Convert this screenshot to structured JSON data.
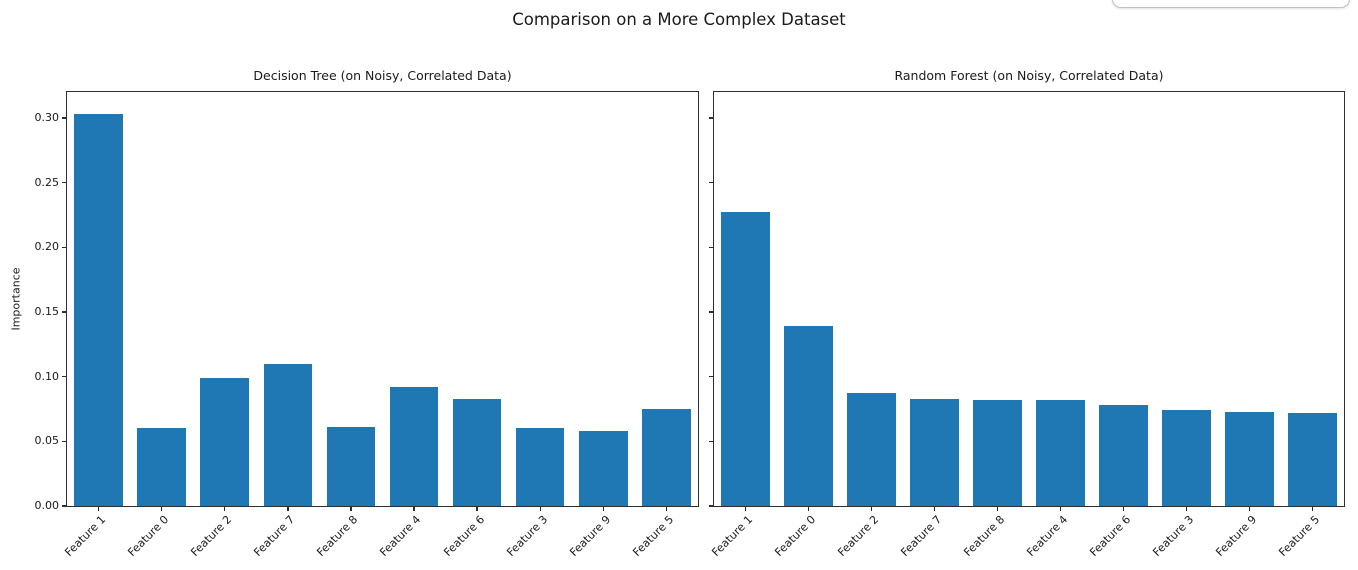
{
  "suptitle": "Comparison on a More Complex Dataset",
  "popup": {
    "visible": true
  },
  "colors": {
    "bar": "#1f77b4",
    "spine": "#2e2e2e",
    "text": "#1a1a1a",
    "popup_border": "#c2c2c2",
    "background": "#ffffff"
  },
  "chart_data": [
    {
      "type": "bar",
      "title": "Decision Tree (on Noisy, Correlated Data)",
      "ylabel": "Importance",
      "xlabel": "",
      "categories": [
        "Feature 1",
        "Feature 0",
        "Feature 2",
        "Feature 7",
        "Feature 8",
        "Feature 4",
        "Feature 6",
        "Feature 3",
        "Feature 9",
        "Feature 5"
      ],
      "values": [
        0.303,
        0.06,
        0.099,
        0.11,
        0.061,
        0.092,
        0.083,
        0.06,
        0.058,
        0.075
      ],
      "ylim": [
        0,
        0.32
      ],
      "yticks": [
        0,
        0.05,
        0.1,
        0.15,
        0.2,
        0.25,
        0.3
      ],
      "ytick_labels": [
        "0.00",
        "0.05",
        "0.10",
        "0.15",
        "0.20",
        "0.25",
        "0.30"
      ],
      "show_ytick_labels": true,
      "xtick_rotation": 45,
      "grid": false,
      "legend": null
    },
    {
      "type": "bar",
      "title": "Random Forest (on Noisy, Correlated Data)",
      "ylabel": "",
      "xlabel": "",
      "categories": [
        "Feature 1",
        "Feature 0",
        "Feature 2",
        "Feature 7",
        "Feature 8",
        "Feature 4",
        "Feature 6",
        "Feature 3",
        "Feature 9",
        "Feature 5"
      ],
      "values": [
        0.227,
        0.139,
        0.087,
        0.083,
        0.082,
        0.082,
        0.078,
        0.074,
        0.073,
        0.072
      ],
      "ylim": [
        0,
        0.32
      ],
      "yticks": [
        0,
        0.05,
        0.1,
        0.15,
        0.2,
        0.25,
        0.3
      ],
      "ytick_labels": [
        "0.00",
        "0.05",
        "0.10",
        "0.15",
        "0.20",
        "0.25",
        "0.30"
      ],
      "show_ytick_labels": false,
      "xtick_rotation": 45,
      "grid": false,
      "legend": null
    }
  ]
}
